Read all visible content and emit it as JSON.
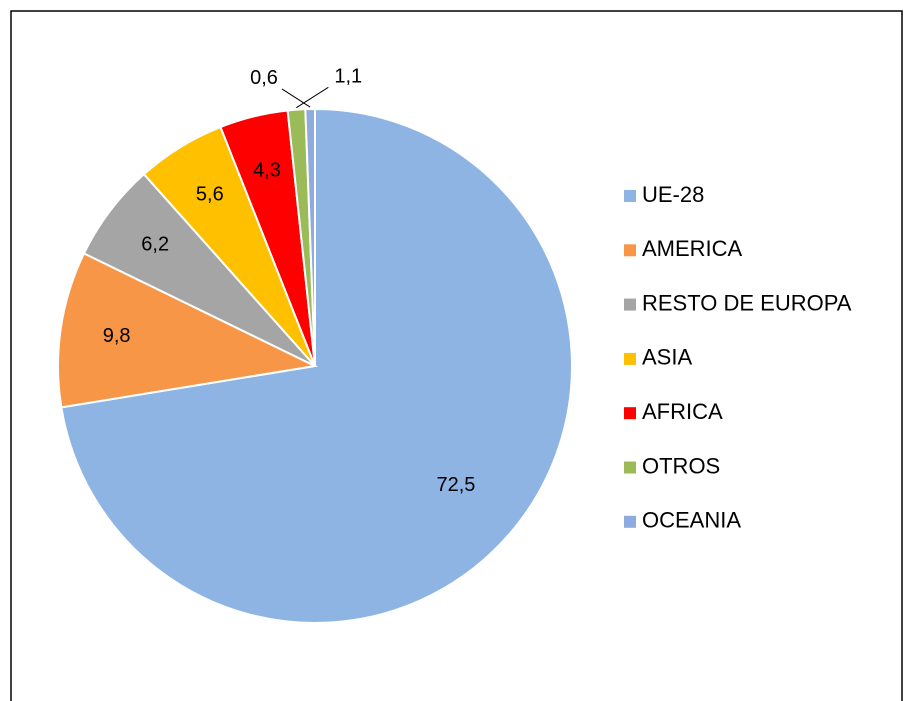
{
  "chart_data": {
    "type": "pie",
    "categories": [
      "UE-28",
      "AMERICA",
      "RESTO DE EUROPA",
      "ASIA",
      "AFRICA",
      "OTROS",
      "OCEANIA"
    ],
    "values": [
      72.5,
      9.8,
      6.2,
      5.6,
      4.3,
      1.1,
      0.6
    ],
    "value_labels": [
      "72,5",
      "9,8",
      "6,2",
      "5,6",
      "4,3",
      "1,1",
      "0,6"
    ],
    "colors": [
      "#8eb4e3",
      "#f79646",
      "#a5a5a5",
      "#ffc000",
      "#ff0000",
      "#9bbb59",
      "#8faadc"
    ],
    "legend": "right"
  }
}
